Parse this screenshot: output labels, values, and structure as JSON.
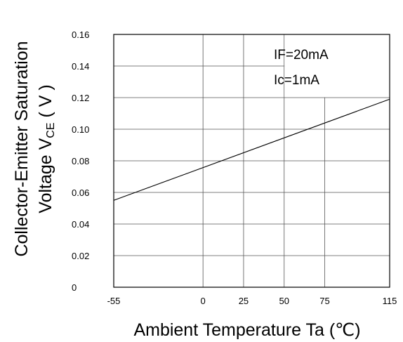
{
  "chart_data": {
    "type": "line",
    "title": "",
    "xlabel": "Ambient Temperature Ta (℃)",
    "ylabel": {
      "line1": "Collector-Emitter Saturation",
      "line2_prefix": "Voltage V",
      "line2_sub": "CE",
      "line2_suffix": " ( V )"
    },
    "xlim": [
      -55,
      115
    ],
    "ylim": [
      0,
      0.16
    ],
    "x_ticks": [
      "-55",
      "0",
      "25",
      "50",
      "75",
      "115"
    ],
    "x_tick_values": [
      -55,
      0,
      25,
      50,
      75,
      115
    ],
    "y_ticks": [
      "0",
      "0.02",
      "0.04",
      "0.06",
      "0.08",
      "0.10",
      "0.12",
      "0.14",
      "0.16"
    ],
    "y_tick_values": [
      0,
      0.02,
      0.04,
      0.06,
      0.08,
      0.1,
      0.12,
      0.14,
      0.16
    ],
    "grid": true,
    "annotations": [
      "IF=20mA",
      "Ic=1mA"
    ],
    "series": [
      {
        "x": [
          -55,
          115
        ],
        "y": [
          0.055,
          0.119
        ]
      }
    ]
  }
}
